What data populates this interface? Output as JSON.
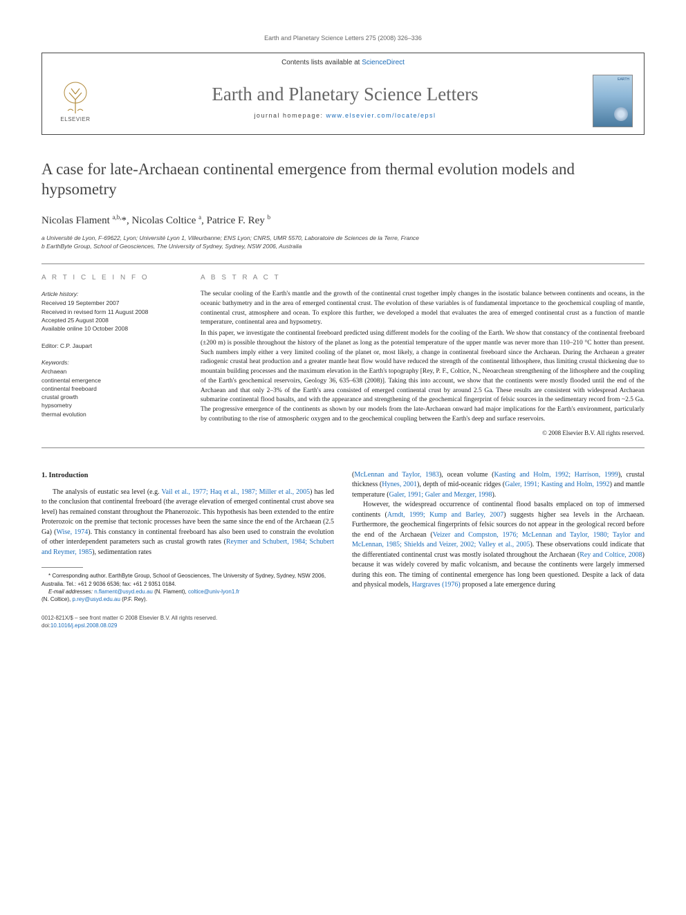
{
  "running_header": "Earth and Planetary Science Letters 275 (2008) 326–336",
  "branding": {
    "contents_line_prefix": "Contents lists available at ",
    "contents_link": "ScienceDirect",
    "journal_title": "Earth and Planetary Science Letters",
    "homepage_prefix": "journal homepage: ",
    "homepage_url": "www.elsevier.com/locate/epsl",
    "elsevier_label": "ELSEVIER",
    "cover_label": "EARTH"
  },
  "article": {
    "title": "A case for late-Archaean continental emergence from thermal evolution models and hypsometry",
    "authors_html": "Nicolas Flament <sup>a,b,</sup>*, Nicolas Coltice <sup>a</sup>, Patrice F. Rey <sup>b</sup>",
    "affiliations": [
      "a Université de Lyon, F-69622, Lyon; Université Lyon 1, Villeurbanne; ENS Lyon; CNRS, UMR 5570, Laboratoire de Sciences de la Terre, France",
      "b EarthByte Group, School of Geosciences, The University of Sydney, Sydney, NSW 2006, Australia"
    ]
  },
  "info": {
    "heading": "A R T I C L E   I N F O",
    "history_label": "Article history:",
    "history": [
      "Received 19 September 2007",
      "Received in revised form 11 August 2008",
      "Accepted 25 August 2008",
      "Available online 10 October 2008"
    ],
    "editor_label": "Editor: C.P. Jaupart",
    "keywords_label": "Keywords:",
    "keywords": [
      "Archaean",
      "continental emergence",
      "continental freeboard",
      "crustal growth",
      "hypsometry",
      "thermal evolution"
    ]
  },
  "abstract": {
    "heading": "A B S T R A C T",
    "p1": "The secular cooling of the Earth's mantle and the growth of the continental crust together imply changes in the isostatic balance between continents and oceans, in the oceanic bathymetry and in the area of emerged continental crust. The evolution of these variables is of fundamental importance to the geochemical coupling of mantle, continental crust, atmosphere and ocean. To explore this further, we developed a model that evaluates the area of emerged continental crust as a function of mantle temperature, continental area and hypsometry.",
    "p2": "In this paper, we investigate the continental freeboard predicted using different models for the cooling of the Earth. We show that constancy of the continental freeboard (±200 m) is possible throughout the history of the planet as long as the potential temperature of the upper mantle was never more than 110–210 °C hotter than present. Such numbers imply either a very limited cooling of the planet or, most likely, a change in continental freeboard since the Archaean. During the Archaean a greater radiogenic crustal heat production and a greater mantle heat flow would have reduced the strength of the continental lithosphere, thus limiting crustal thickening due to mountain building processes and the maximum elevation in the Earth's topography [Rey, P. F., Coltice, N., Neoarchean strengthening of the lithosphere and the coupling of the Earth's geochemical reservoirs, Geology 36, 635–638 (2008)]. Taking this into account, we show that the continents were mostly flooded until the end of the Archaean and that only 2–3% of the Earth's area consisted of emerged continental crust by around 2.5 Ga. These results are consistent with widespread Archaean submarine continental flood basalts, and with the appearance and strengthening of the geochemical fingerprint of felsic sources in the sedimentary record from ~2.5 Ga. The progressive emergence of the continents as shown by our models from the late-Archaean onward had major implications for the Earth's environment, particularly by contributing to the rise of atmospheric oxygen and to the geochemical coupling between the Earth's deep and surface reservoirs.",
    "copyright": "© 2008 Elsevier B.V. All rights reserved."
  },
  "body": {
    "section_heading": "1. Introduction",
    "col1_p1_pre": "The analysis of eustatic sea level (e.g. ",
    "col1_p1_link1": "Vail et al., 1977; Haq et al., 1987; Miller et al., 2005",
    "col1_p1_mid1": ") has led to the conclusion that continental freeboard (the average elevation of emerged continental crust above sea level) has remained constant throughout the Phanerozoic. This hypothesis has been extended to the entire Proterozoic on the premise that tectonic processes have been the same since the end of the Archaean (2.5 Ga) (",
    "col1_p1_link2": "Wise, 1974",
    "col1_p1_mid2": "). This constancy in continental freeboard has also been used to constrain the evolution of other interdependent parameters such as crustal growth rates (",
    "col1_p1_link3": "Reymer and Schubert, 1984; Schubert and Reymer, 1985",
    "col1_p1_end": "), sedimentation rates",
    "col2_p1_pre": "(",
    "col2_p1_link1": "McLennan and Taylor, 1983",
    "col2_p1_mid1": "), ocean volume (",
    "col2_p1_link2": "Kasting and Holm, 1992; Harrison, 1999",
    "col2_p1_mid2": "), crustal thickness (",
    "col2_p1_link3": "Hynes, 2001",
    "col2_p1_mid3": "), depth of mid-oceanic ridges (",
    "col2_p1_link4": "Galer, 1991; Kasting and Holm, 1992",
    "col2_p1_mid4": ") and mantle temperature (",
    "col2_p1_link5": "Galer, 1991; Galer and Mezger, 1998",
    "col2_p1_end": ").",
    "col2_p2_pre": "However, the widespread occurrence of continental flood basalts emplaced on top of immersed continents (",
    "col2_p2_link1": "Arndt, 1999; Kump and Barley, 2007",
    "col2_p2_mid1": ") suggests higher sea levels in the Archaean. Furthermore, the geochemical fingerprints of felsic sources do not appear in the geological record before the end of the Archaean (",
    "col2_p2_link2": "Veizer and Compston, 1976; McLennan and Taylor, 1980; Taylor and McLennan, 1985; Shields and Veizer, 2002; Valley et al., 2005",
    "col2_p2_mid2": "). These observations could indicate that the differentiated continental crust was mostly isolated throughout the Archaean (",
    "col2_p2_link3": "Rey and Coltice, 2008",
    "col2_p2_mid3": ") because it was widely covered by mafic volcanism, and because the continents were largely immersed during this eon. The timing of continental emergence has long been questioned. Despite a lack of data and physical models, ",
    "col2_p2_link4": "Hargraves (1976)",
    "col2_p2_end": " proposed a late emergence during"
  },
  "footnotes": {
    "corr": "* Corresponding author. EarthByte Group, School of Geosciences, The University of Sydney, Sydney, NSW 2006, Australia. Tel.: +61 2 9036 6536; fax: +61 2 9351 0184.",
    "email_label": "E-mail addresses: ",
    "email1": "n.flament@usyd.edu.au",
    "email1_who": " (N. Flament), ",
    "email2": "coltice@univ-lyon1.fr",
    "email2_who": " (N. Coltice), ",
    "email3": "p.rey@usyd.edu.au",
    "email3_who": " (P.F. Rey)."
  },
  "footer": {
    "line1": "0012-821X/$ – see front matter © 2008 Elsevier B.V. All rights reserved.",
    "doi_label": "doi:",
    "doi": "10.1016/j.epsl.2008.08.029"
  },
  "colors": {
    "link": "#1a6bb8",
    "heading_gray": "#888888",
    "text": "#222222",
    "rule": "#888888"
  }
}
